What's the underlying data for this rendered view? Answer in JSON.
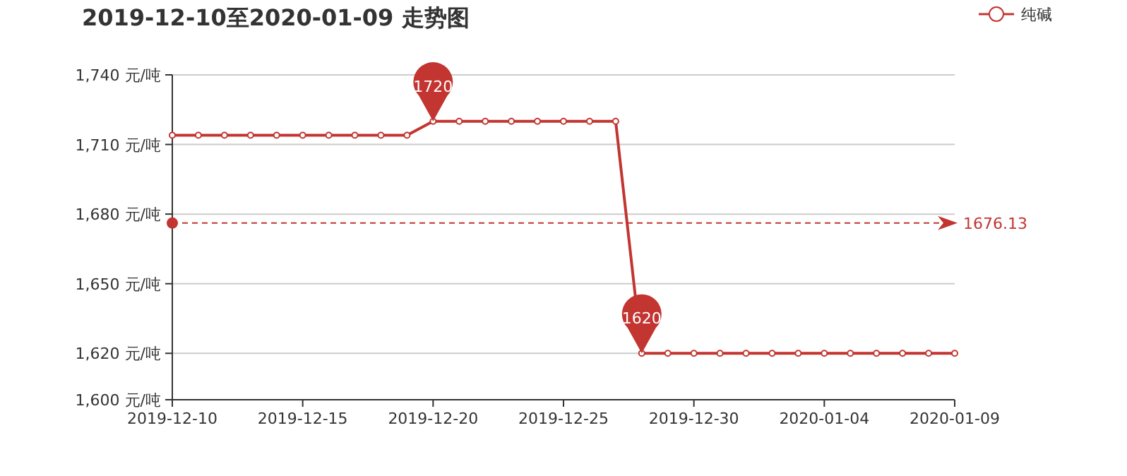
{
  "chart_data": {
    "type": "line",
    "title": "2019-12-10至2020-01-09 走势图",
    "x": [
      "2019-12-10",
      "2019-12-11",
      "2019-12-12",
      "2019-12-13",
      "2019-12-14",
      "2019-12-15",
      "2019-12-16",
      "2019-12-17",
      "2019-12-18",
      "2019-12-19",
      "2019-12-20",
      "2019-12-21",
      "2019-12-22",
      "2019-12-23",
      "2019-12-24",
      "2019-12-25",
      "2019-12-26",
      "2019-12-27",
      "2019-12-28",
      "2019-12-29",
      "2019-12-30",
      "2019-12-31",
      "2020-01-01",
      "2020-01-02",
      "2020-01-03",
      "2020-01-04",
      "2020-01-05",
      "2020-01-06",
      "2020-01-07",
      "2020-01-08",
      "2020-01-09"
    ],
    "series": [
      {
        "name": "纯碱",
        "color": "#c23531",
        "values": [
          1714,
          1714,
          1714,
          1714,
          1714,
          1714,
          1714,
          1714,
          1714,
          1714,
          1720,
          1720,
          1720,
          1720,
          1720,
          1720,
          1720,
          1720,
          1620,
          1620,
          1620,
          1620,
          1620,
          1620,
          1620,
          1620,
          1620,
          1620,
          1620,
          1620,
          1620
        ]
      }
    ],
    "xlim": [
      "2019-12-10",
      "2020-01-09"
    ],
    "xticks": [
      "2019-12-10",
      "2019-12-15",
      "2019-12-20",
      "2019-12-25",
      "2019-12-30",
      "2020-01-04",
      "2020-01-09"
    ],
    "ylim": [
      1600,
      1740
    ],
    "yticks": [
      {
        "value": 1600,
        "label": "1,600 元/吨"
      },
      {
        "value": 1620,
        "label": "1,620 元/吨"
      },
      {
        "value": 1650,
        "label": "1,650 元/吨"
      },
      {
        "value": 1680,
        "label": "1,680 元/吨"
      },
      {
        "value": 1710,
        "label": "1,710 元/吨"
      },
      {
        "value": 1740,
        "label": "1,740 元/吨"
      }
    ],
    "annotations": [
      {
        "text": "1720",
        "x": "2019-12-20",
        "y": 1720
      },
      {
        "text": "1620",
        "x": "2019-12-28",
        "y": 1620
      }
    ],
    "ref_lines": [
      {
        "axis": "y",
        "value": 1676.13,
        "label": "1676.13",
        "color": "#c23531",
        "line_style": "dashed"
      }
    ],
    "grid": "y",
    "legend": "top right",
    "marker": "circle",
    "line_style": "solid"
  }
}
